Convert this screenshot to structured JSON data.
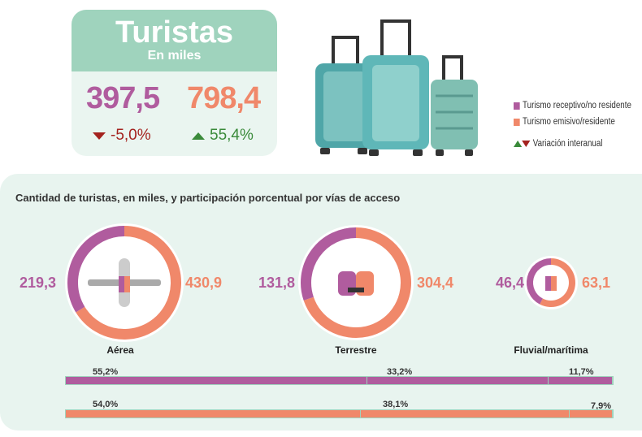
{
  "colors": {
    "receptivo": "#b05c9e",
    "emisivo": "#f0886a",
    "header": "#9fd3bd",
    "panel": "#e8f4ef",
    "up": "#3a8a3a",
    "down": "#a4231f"
  },
  "card": {
    "title": "Turistas",
    "subtitle": "En miles",
    "receptivo": {
      "value": "397,5",
      "variation": "-5,0%",
      "direction": "down"
    },
    "emisivo": {
      "value": "798,4",
      "variation": "55,4%",
      "direction": "up"
    }
  },
  "legend": {
    "receptivo": "Turismo receptivo/no residente",
    "emisivo": "Turismo emisivo/residente",
    "variacion": "Variación interanual"
  },
  "section": {
    "title": "Cantidad de turistas, en miles, y participación porcentual por vías de acceso"
  },
  "chart_data": {
    "type": "pie",
    "title": "Cantidad de turistas, en miles, y participación porcentual por vías de acceso",
    "series_names": [
      "Turismo receptivo/no residente",
      "Turismo emisivo/residente"
    ],
    "categories": [
      {
        "name": "Aérea",
        "icon": "airplane-icon",
        "receptivo": 219.3,
        "emisivo": 430.9,
        "receptivo_label": "219,3",
        "emisivo_label": "430,9"
      },
      {
        "name": "Terrestre",
        "icon": "car-icon",
        "receptivo": 131.8,
        "emisivo": 304.4,
        "receptivo_label": "131,8",
        "emisivo_label": "304,4"
      },
      {
        "name": "Fluvial/marítima",
        "icon": "ship-icon",
        "receptivo": 46.4,
        "emisivo": 63.1,
        "receptivo_label": "46,4",
        "emisivo_label": "63,1"
      }
    ],
    "shares": {
      "receptivo": [
        55.2,
        33.2,
        11.7
      ],
      "emisivo": [
        54.0,
        38.1,
        7.9
      ],
      "receptivo_labels": [
        "55,2%",
        "33,2%",
        "11,7%"
      ],
      "emisivo_labels": [
        "54,0%",
        "38,1%",
        "7,9%"
      ]
    }
  }
}
